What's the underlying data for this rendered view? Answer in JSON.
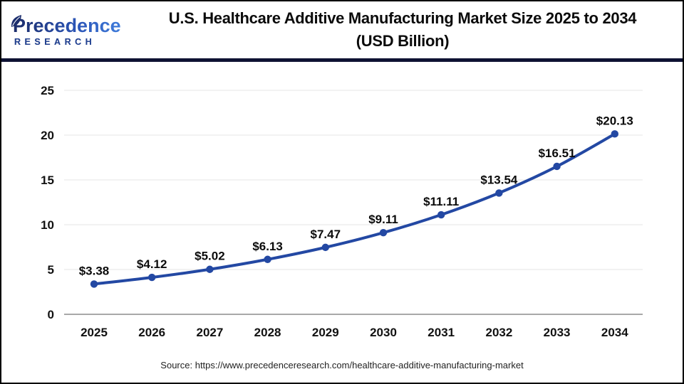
{
  "header": {
    "logo": {
      "wordmark": "Precedence",
      "subtitle": "RESEARCH"
    },
    "title_line1": "U.S. Healthcare Additive Manufacturing Market Size 2025 to 2034",
    "title_line2": "(USD Billion)"
  },
  "chart_data": {
    "type": "line",
    "title": "U.S. Healthcare Additive Manufacturing Market Size 2025 to 2034 (USD Billion)",
    "categories": [
      "2025",
      "2026",
      "2027",
      "2028",
      "2029",
      "2030",
      "2031",
      "2032",
      "2033",
      "2034"
    ],
    "values": [
      3.38,
      4.12,
      5.02,
      6.13,
      7.47,
      9.11,
      11.11,
      13.54,
      16.51,
      20.13
    ],
    "point_labels": [
      "$3.38",
      "$4.12",
      "$5.02",
      "$6.13",
      "$7.47",
      "$9.11",
      "$11.11",
      "$13.54",
      "$16.51",
      "$20.13"
    ],
    "xlabel": "",
    "ylabel": "",
    "ylim": [
      0,
      25
    ],
    "yticks": [
      0,
      5,
      10,
      15,
      20,
      25
    ],
    "grid": "horizontal",
    "legend": "none"
  },
  "footer": {
    "source": "Source: https://www.precedenceresearch.com/healthcare-additive-manufacturing-market"
  },
  "colors": {
    "line": "#2348a3",
    "marker": "#2348a3",
    "gridline": "#e4e4e4",
    "baseline": "#a8a8a8",
    "tick_text": "#111111",
    "value_text": "#0b0b0b",
    "divider": "#0e1233",
    "logo_dark": "#1c2e6e",
    "logo_light": "#4486e4"
  }
}
